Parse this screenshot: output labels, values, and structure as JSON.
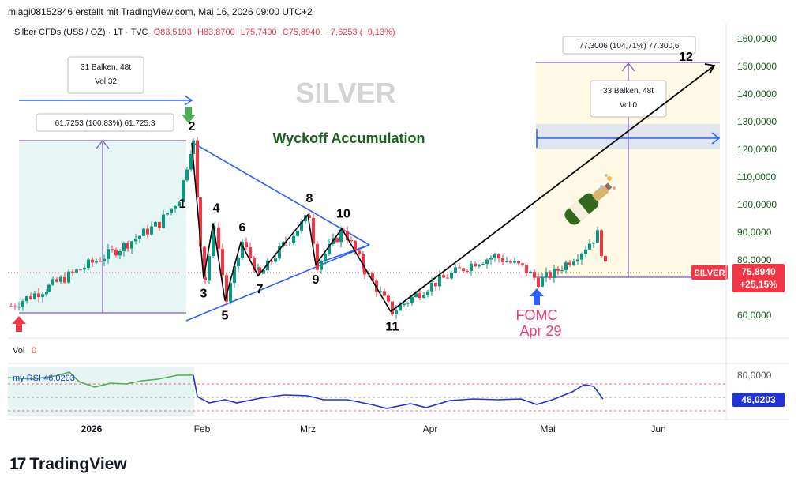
{
  "header": {
    "credit": "miagi08152846 erstellt mit TradingView.com, Mai 16, 2026 09:00 UTC+2",
    "symbol": "Silber CFDs (US$ / OZ) · 1T · TVC",
    "ohlc": {
      "open": "O83,5193",
      "high": "H83,8700",
      "low": "L75,7490",
      "close": "C75,8940",
      "change": "−7,6253 (−9,13%)"
    }
  },
  "watermark": "SILVER",
  "annotations": {
    "title": "Wyckoff Accumulation",
    "box_left": {
      "bars": "31 Balken, 48t",
      "vol": "Vol 32",
      "range": "61,7253 (100,83%) 61.725,3"
    },
    "box_right": {
      "bars": "33 Balken, 48t",
      "vol": "Vol 0",
      "range": "77,3006 (104,71%) 77.300,6"
    },
    "fomc": [
      "FOMC",
      "Apr 29"
    ],
    "wave_labels": [
      "1",
      "2",
      "3",
      "4",
      "5",
      "6",
      "7",
      "8",
      "9",
      "10",
      "11",
      "12"
    ]
  },
  "price_scale": {
    "ticks": [
      "160,0000",
      "150,0000",
      "140,0000",
      "130,0000",
      "120,0000",
      "110,0000",
      "100,0000",
      "90,0000",
      "80,0000",
      "60,0000"
    ],
    "symbol_tag": "SILVER",
    "last_price": "75,8940",
    "last_change": "+25,15%"
  },
  "volume": {
    "label": "Vol",
    "value": "0"
  },
  "rsi": {
    "label": "my RSI",
    "value": "46,0203",
    "axis_tick": "80,0000",
    "current": "46,0203"
  },
  "time_axis": [
    "2026",
    "Feb",
    "Mrz",
    "Apr",
    "Mai",
    "Jun"
  ],
  "brand": "TradingView",
  "colors": {
    "up": "#089981",
    "down": "#f23645",
    "accent_green": "#1b5e20",
    "trend_blue": "#2962ff",
    "measure_purple": "#7e57c2",
    "rsi_line": "#2132d6"
  },
  "chart_data": {
    "type": "candlestick",
    "title": "Silber CFDs (US$ / OZ) · 1T · TVC",
    "x_labels": [
      "2026",
      "Feb",
      "Mrz",
      "Apr",
      "Mai",
      "Jun"
    ],
    "ylim": [
      55,
      163
    ],
    "y_ticks": [
      60,
      80,
      90,
      100,
      110,
      120,
      130,
      140,
      150,
      160
    ],
    "wave_points": [
      {
        "label": "1",
        "value": 102
      },
      {
        "label": "2",
        "value": 122
      },
      {
        "label": "3",
        "value": 73
      },
      {
        "label": "4",
        "value": 93
      },
      {
        "label": "5",
        "value": 65
      },
      {
        "label": "6",
        "value": 86
      },
      {
        "label": "7",
        "value": 74
      },
      {
        "label": "8",
        "value": 96
      },
      {
        "label": "9",
        "value": 78
      },
      {
        "label": "10",
        "value": 91
      },
      {
        "label": "11",
        "value": 61
      },
      {
        "label": "12",
        "value": 150
      }
    ],
    "last_close": 75.894,
    "last_change_pct": 25.15,
    "rsi_last": 46.0203
  }
}
